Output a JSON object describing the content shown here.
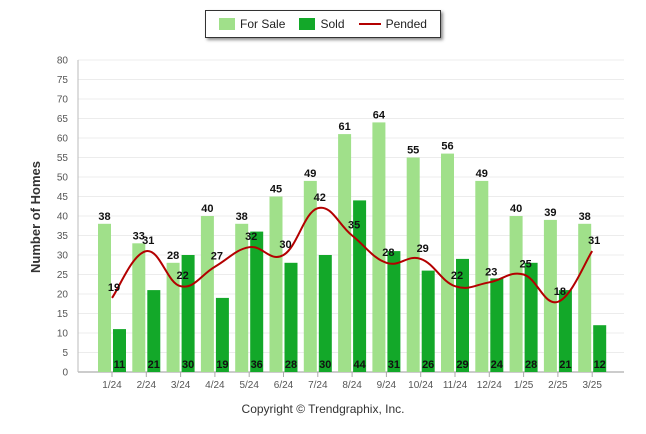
{
  "chart_data": {
    "type": "bar",
    "categories": [
      "1/24",
      "2/24",
      "3/24",
      "4/24",
      "5/24",
      "6/24",
      "7/24",
      "8/24",
      "9/24",
      "10/24",
      "11/24",
      "12/24",
      "1/25",
      "2/25",
      "3/25"
    ],
    "series": [
      {
        "name": "For Sale",
        "type": "bar",
        "color": "#a0e08a",
        "values": [
          38,
          33,
          28,
          40,
          38,
          45,
          49,
          61,
          64,
          55,
          56,
          49,
          40,
          39,
          38
        ]
      },
      {
        "name": "Sold",
        "type": "bar",
        "color": "#13a829",
        "values": [
          11,
          21,
          30,
          19,
          36,
          28,
          30,
          44,
          31,
          26,
          29,
          24,
          28,
          21,
          12
        ]
      },
      {
        "name": "Pended",
        "type": "line",
        "color": "#b30000",
        "values": [
          19,
          31,
          22,
          27,
          32,
          30,
          42,
          35,
          28,
          29,
          22,
          23,
          25,
          18,
          31
        ]
      }
    ],
    "ylabel": "Number of Homes",
    "xlabel": "",
    "ylim": [
      0,
      80
    ],
    "yticks": [
      0,
      5,
      10,
      15,
      20,
      25,
      30,
      35,
      40,
      45,
      50,
      55,
      60,
      65,
      70,
      75,
      80
    ],
    "grid": true,
    "legend_position": "top"
  },
  "footer": {
    "credit": "Copyright © Trendgraphix, Inc."
  }
}
